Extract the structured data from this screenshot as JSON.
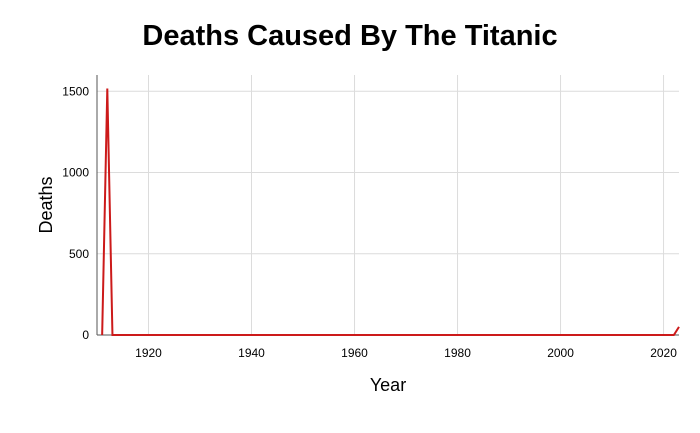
{
  "chart_data": {
    "type": "line",
    "title": "Deaths Caused By The Titanic",
    "xlabel": "Year",
    "ylabel": "Deaths",
    "xlim": [
      1910,
      2023
    ],
    "ylim": [
      0,
      1600
    ],
    "xticks": [
      1920,
      1940,
      1960,
      1980,
      2000,
      2020
    ],
    "yticks": [
      0,
      500,
      1000,
      1500
    ],
    "grid": true,
    "line_color": "#cc1a1a",
    "x": [
      1911,
      1912,
      1913,
      2022,
      2023
    ],
    "y": [
      0,
      1517,
      0,
      0,
      50
    ]
  }
}
